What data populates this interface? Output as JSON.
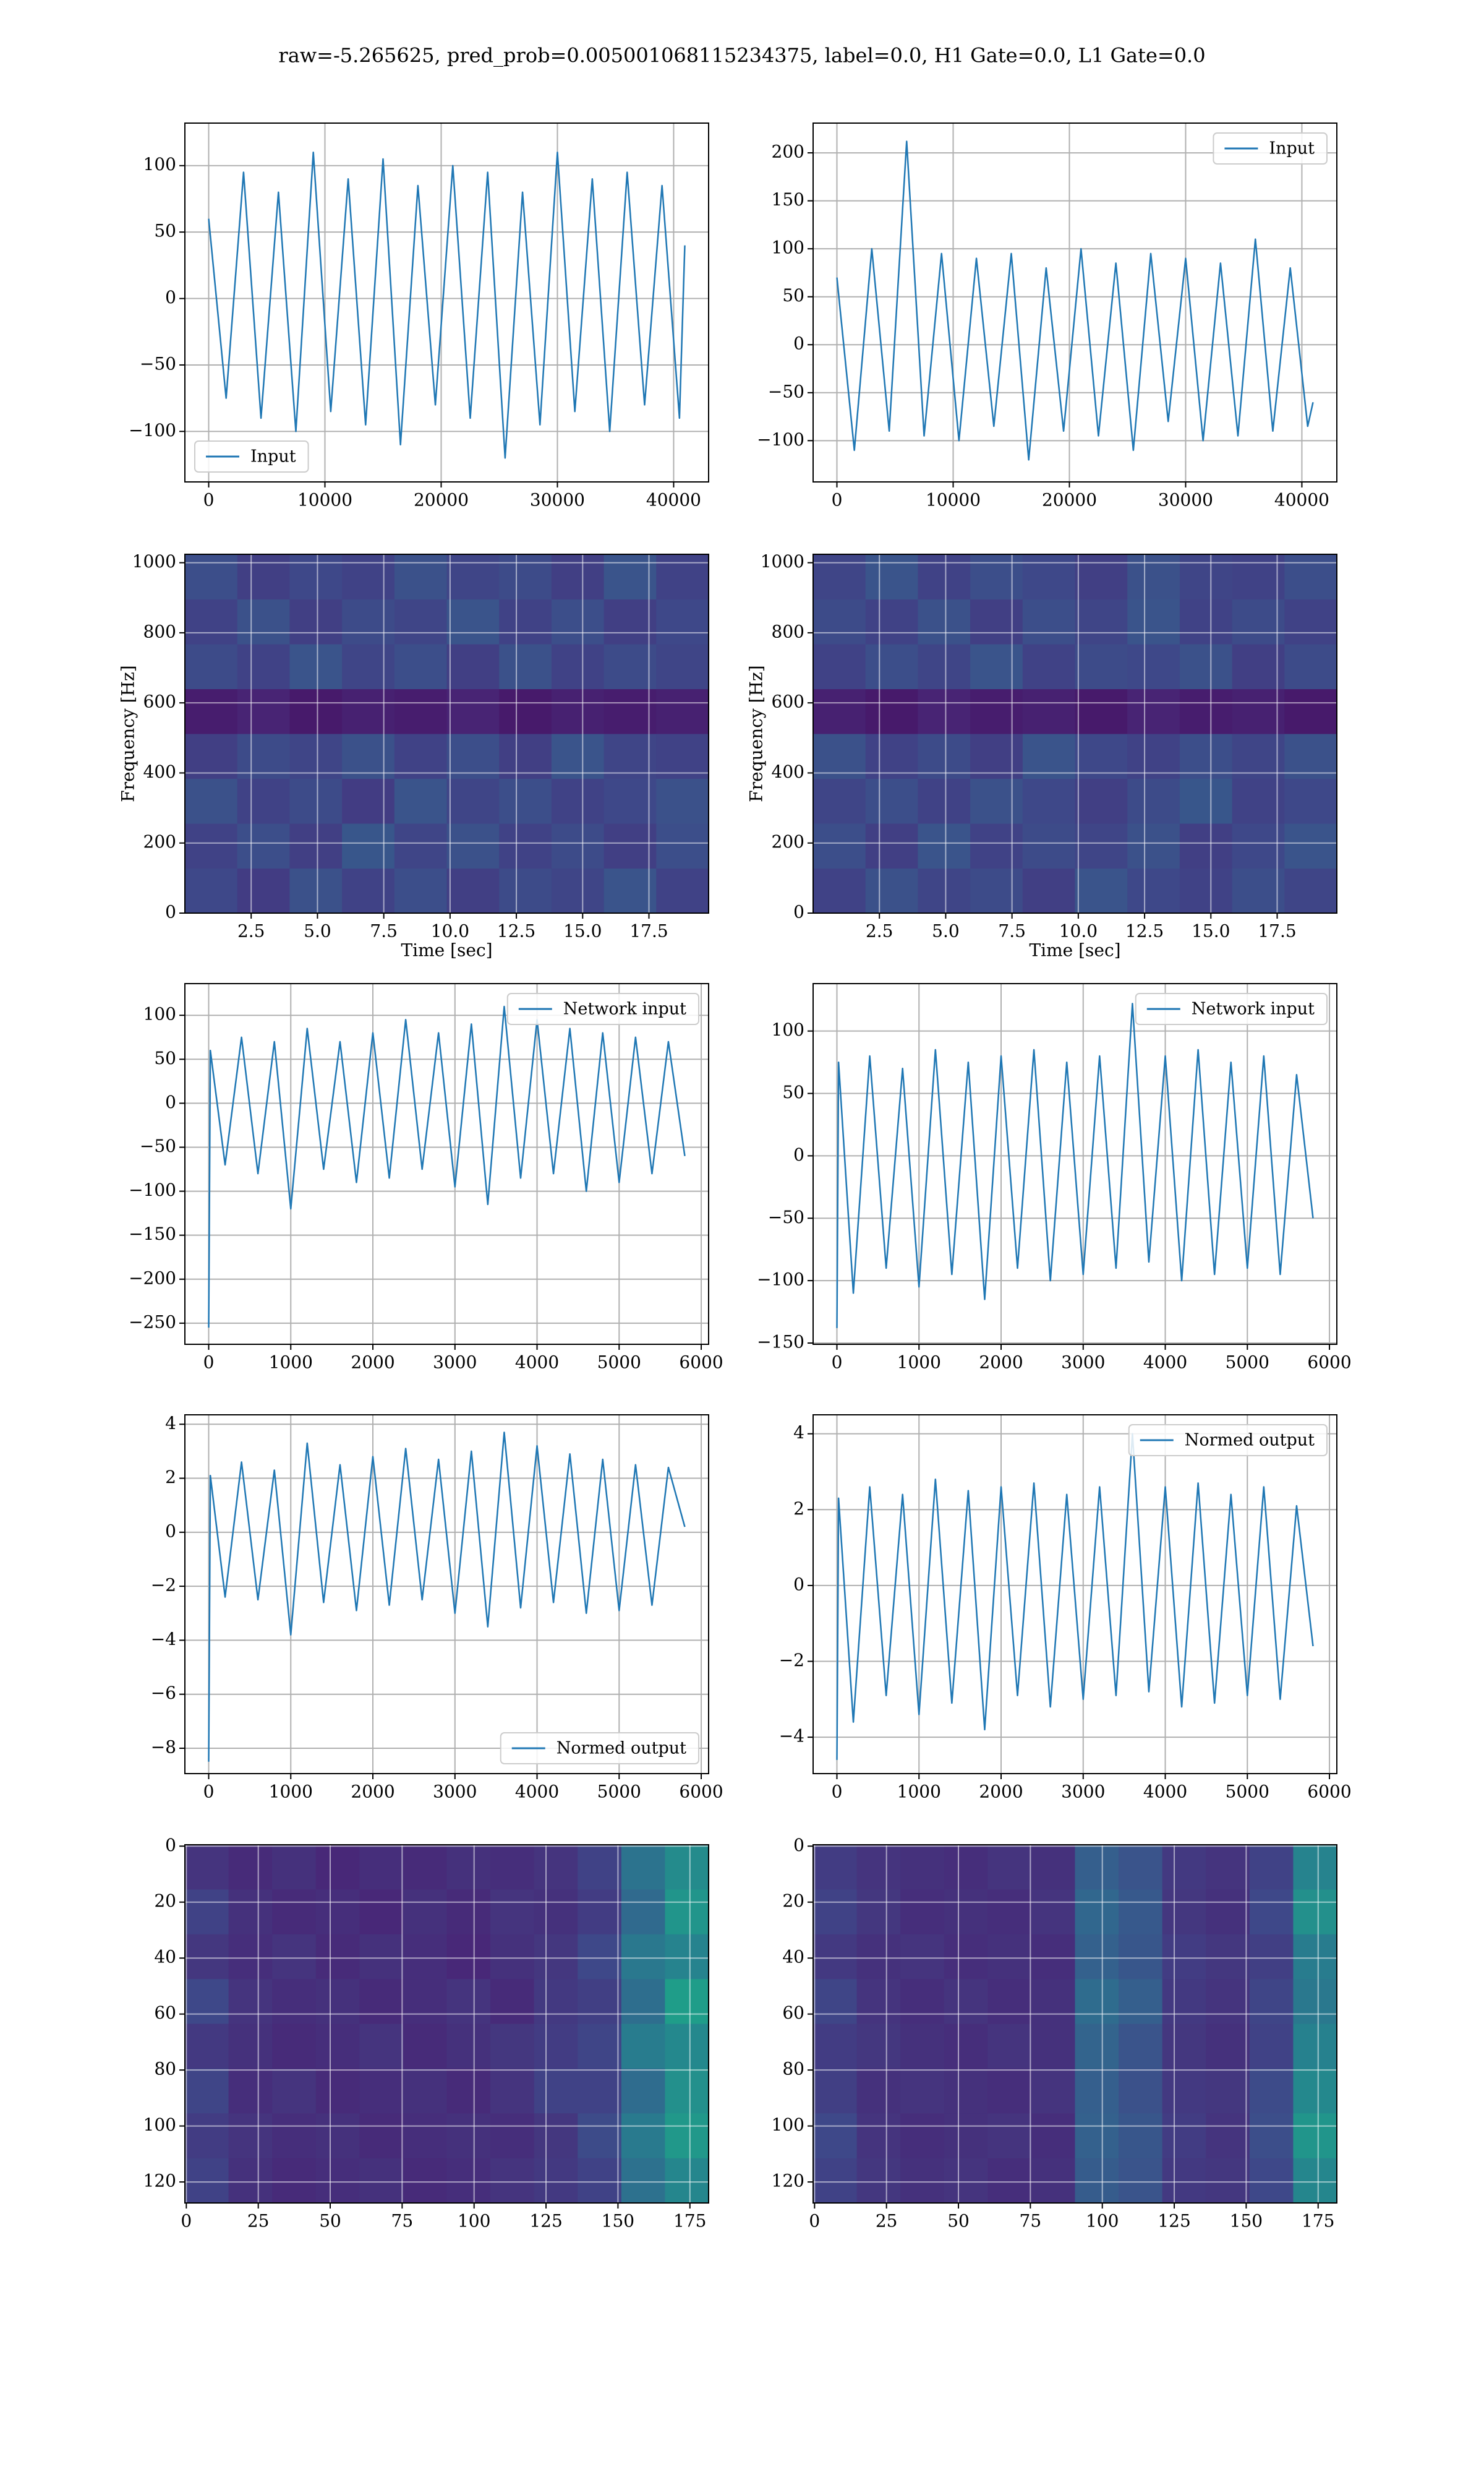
{
  "title": "raw=-5.265625, pred_prob=0.005001068115234375, label=0.0, H1 Gate=0.0, L1 Gate=0.0",
  "chart_data": [
    {
      "type": "line",
      "grid": true,
      "legend": "lower left",
      "xlim": [
        -2048,
        43008
      ],
      "ylim": [
        -138,
        132
      ],
      "xticks": [
        0,
        10000,
        20000,
        30000,
        40000
      ],
      "yticks": [
        {
          "value": -100,
          "label": "−100"
        },
        {
          "value": -50,
          "label": "−50"
        },
        0,
        50,
        100
      ],
      "x": [
        0,
        1500,
        3000,
        4500,
        6000,
        7500,
        9000,
        10500,
        12000,
        13500,
        15000,
        16500,
        18000,
        19500,
        21000,
        22500,
        24000,
        25500,
        27000,
        28500,
        30000,
        31500,
        33000,
        34500,
        36000,
        37500,
        39000,
        40500,
        40960
      ],
      "series": [
        {
          "name": "Input",
          "color": "#1f77b4",
          "values": [
            60,
            -75,
            95,
            -90,
            80,
            -100,
            110,
            -85,
            90,
            -95,
            105,
            -110,
            85,
            -80,
            100,
            -90,
            95,
            -120,
            80,
            -95,
            110,
            -85,
            90,
            -100,
            95,
            -80,
            85,
            -90,
            40
          ]
        }
      ]
    },
    {
      "type": "line",
      "grid": true,
      "legend": "upper right",
      "xlim": [
        -2048,
        43008
      ],
      "ylim": [
        -143,
        231
      ],
      "xticks": [
        0,
        10000,
        20000,
        30000,
        40000
      ],
      "yticks": [
        {
          "value": -100,
          "label": "−100"
        },
        {
          "value": -50,
          "label": "−50"
        },
        0,
        50,
        100,
        150,
        200
      ],
      "x": [
        0,
        1500,
        3000,
        4500,
        6000,
        7500,
        9000,
        10500,
        12000,
        13500,
        15000,
        16500,
        18000,
        19500,
        21000,
        22500,
        24000,
        25500,
        27000,
        28500,
        30000,
        31500,
        33000,
        34500,
        36000,
        37500,
        39000,
        40500,
        40960
      ],
      "series": [
        {
          "name": "Input",
          "color": "#1f77b4",
          "values": [
            70,
            -110,
            100,
            -90,
            212,
            -95,
            95,
            -100,
            90,
            -85,
            95,
            -120,
            80,
            -90,
            100,
            -95,
            85,
            -110,
            95,
            -80,
            90,
            -100,
            85,
            -95,
            110,
            -90,
            80,
            -85,
            -60
          ]
        }
      ]
    },
    {
      "type": "heatmap",
      "grid": true,
      "origin": "lower",
      "xlabel": "Time [sec]",
      "ylabel": "Frequency [Hz]",
      "xlim": [
        0,
        19.75
      ],
      "ylim": [
        0,
        1024
      ],
      "xticks": [
        2.5,
        {
          "value": 5,
          "label": "5.0"
        },
        7.5,
        {
          "value": 10,
          "label": "10.0"
        },
        12.5,
        {
          "value": 15,
          "label": "15.0"
        },
        17.5
      ],
      "yticks": [
        0,
        200,
        400,
        600,
        800,
        1000
      ],
      "z": [
        [
          0.22,
          0.18,
          0.25,
          0.2,
          0.24,
          0.19,
          0.23,
          0.21,
          0.26,
          0.2
        ],
        [
          0.2,
          0.24,
          0.19,
          0.27,
          0.21,
          0.25,
          0.2,
          0.23,
          0.19,
          0.24
        ],
        [
          0.25,
          0.2,
          0.23,
          0.18,
          0.26,
          0.21,
          0.24,
          0.2,
          0.22,
          0.25
        ],
        [
          0.19,
          0.23,
          0.21,
          0.25,
          0.2,
          0.24,
          0.19,
          0.26,
          0.21,
          0.2
        ],
        [
          0.08,
          0.1,
          0.07,
          0.09,
          0.08,
          0.1,
          0.07,
          0.09,
          0.08,
          0.09
        ],
        [
          0.23,
          0.2,
          0.26,
          0.21,
          0.24,
          0.19,
          0.25,
          0.2,
          0.23,
          0.21
        ],
        [
          0.2,
          0.25,
          0.19,
          0.23,
          0.21,
          0.26,
          0.2,
          0.24,
          0.19,
          0.22
        ],
        [
          0.24,
          0.19,
          0.22,
          0.2,
          0.25,
          0.21,
          0.23,
          0.19,
          0.26,
          0.2
        ]
      ]
    },
    {
      "type": "heatmap",
      "grid": true,
      "origin": "lower",
      "xlabel": "Time [sec]",
      "ylabel": "Frequency [Hz]",
      "xlim": [
        0,
        19.75
      ],
      "ylim": [
        0,
        1024
      ],
      "xticks": [
        2.5,
        {
          "value": 5,
          "label": "5.0"
        },
        7.5,
        {
          "value": 10,
          "label": "10.0"
        },
        12.5,
        {
          "value": 15,
          "label": "15.0"
        },
        17.5
      ],
      "yticks": [
        0,
        200,
        400,
        600,
        800,
        1000
      ],
      "z": [
        [
          0.2,
          0.25,
          0.21,
          0.23,
          0.19,
          0.26,
          0.22,
          0.2,
          0.24,
          0.21
        ],
        [
          0.24,
          0.19,
          0.26,
          0.2,
          0.23,
          0.21,
          0.25,
          0.19,
          0.22,
          0.26
        ],
        [
          0.21,
          0.24,
          0.2,
          0.25,
          0.22,
          0.19,
          0.23,
          0.27,
          0.2,
          0.22
        ],
        [
          0.25,
          0.2,
          0.23,
          0.19,
          0.26,
          0.22,
          0.2,
          0.24,
          0.21,
          0.25
        ],
        [
          0.09,
          0.07,
          0.1,
          0.08,
          0.09,
          0.07,
          0.1,
          0.08,
          0.09,
          0.07
        ],
        [
          0.2,
          0.24,
          0.21,
          0.26,
          0.2,
          0.23,
          0.22,
          0.25,
          0.19,
          0.23
        ],
        [
          0.23,
          0.2,
          0.25,
          0.19,
          0.24,
          0.21,
          0.26,
          0.2,
          0.23,
          0.2
        ],
        [
          0.21,
          0.26,
          0.2,
          0.24,
          0.22,
          0.19,
          0.25,
          0.21,
          0.2,
          0.24
        ]
      ]
    },
    {
      "type": "line",
      "grid": true,
      "legend": "upper right",
      "xlim": [
        -290,
        6090
      ],
      "ylim": [
        -274,
        136
      ],
      "xticks": [
        0,
        1000,
        2000,
        3000,
        4000,
        5000,
        6000
      ],
      "yticks": [
        {
          "value": -250,
          "label": "−250"
        },
        {
          "value": -200,
          "label": "−200"
        },
        {
          "value": -150,
          "label": "−150"
        },
        {
          "value": -100,
          "label": "−100"
        },
        {
          "value": -50,
          "label": "−50"
        },
        0,
        50,
        100
      ],
      "x": [
        0,
        20,
        200,
        400,
        600,
        800,
        1000,
        1200,
        1400,
        1600,
        1800,
        2000,
        2200,
        2400,
        2600,
        2800,
        3000,
        3200,
        3400,
        3600,
        3800,
        4000,
        4200,
        4400,
        4600,
        4800,
        5000,
        5200,
        5400,
        5600,
        5800
      ],
      "series": [
        {
          "name": "Network input",
          "color": "#1f77b4",
          "values": [
            -255,
            60,
            -70,
            75,
            -80,
            70,
            -120,
            85,
            -75,
            70,
            -90,
            80,
            -85,
            95,
            -75,
            80,
            -95,
            90,
            -115,
            110,
            -85,
            95,
            -80,
            85,
            -100,
            80,
            -90,
            75,
            -80,
            70,
            -60
          ]
        }
      ]
    },
    {
      "type": "line",
      "grid": true,
      "legend": "upper right",
      "xlim": [
        -290,
        6090
      ],
      "ylim": [
        -151,
        138
      ],
      "xticks": [
        0,
        1000,
        2000,
        3000,
        4000,
        5000,
        6000
      ],
      "yticks": [
        {
          "value": -150,
          "label": "−150"
        },
        {
          "value": -100,
          "label": "−100"
        },
        {
          "value": -50,
          "label": "−50"
        },
        0,
        50,
        100
      ],
      "x": [
        0,
        20,
        200,
        400,
        600,
        800,
        1000,
        1200,
        1400,
        1600,
        1800,
        2000,
        2200,
        2400,
        2600,
        2800,
        3000,
        3200,
        3400,
        3600,
        3800,
        4000,
        4200,
        4400,
        4600,
        4800,
        5000,
        5200,
        5400,
        5600,
        5800
      ],
      "series": [
        {
          "name": "Network input",
          "color": "#1f77b4",
          "values": [
            -138,
            75,
            -110,
            80,
            -90,
            70,
            -105,
            85,
            -95,
            75,
            -115,
            80,
            -90,
            85,
            -100,
            75,
            -95,
            80,
            -90,
            122,
            -85,
            80,
            -100,
            85,
            -95,
            75,
            -90,
            80,
            -95,
            65,
            -50
          ]
        }
      ]
    },
    {
      "type": "line",
      "grid": true,
      "legend": "lower right",
      "xlim": [
        -290,
        6090
      ],
      "ylim": [
        -8.94,
        4.35
      ],
      "xticks": [
        0,
        1000,
        2000,
        3000,
        4000,
        5000,
        6000
      ],
      "yticks": [
        {
          "value": -8,
          "label": "−8"
        },
        {
          "value": -6,
          "label": "−6"
        },
        {
          "value": -4,
          "label": "−4"
        },
        {
          "value": -2,
          "label": "−2"
        },
        0,
        2,
        4
      ],
      "x": [
        0,
        20,
        200,
        400,
        600,
        800,
        1000,
        1200,
        1400,
        1600,
        1800,
        2000,
        2200,
        2400,
        2600,
        2800,
        3000,
        3200,
        3400,
        3600,
        3800,
        4000,
        4200,
        4400,
        4600,
        4800,
        5000,
        5200,
        5400,
        5600,
        5800
      ],
      "series": [
        {
          "name": "Normed output",
          "color": "#1f77b4",
          "values": [
            -8.5,
            2.1,
            -2.4,
            2.6,
            -2.5,
            2.3,
            -3.8,
            3.3,
            -2.6,
            2.5,
            -2.9,
            2.8,
            -2.7,
            3.1,
            -2.5,
            2.7,
            -3.0,
            3.0,
            -3.5,
            3.7,
            -2.8,
            3.2,
            -2.6,
            2.9,
            -3.0,
            2.7,
            -2.9,
            2.5,
            -2.7,
            2.4,
            0.2
          ]
        }
      ]
    },
    {
      "type": "line",
      "grid": true,
      "legend": "upper right",
      "xlim": [
        -290,
        6090
      ],
      "ylim": [
        -4.96,
        4.5
      ],
      "xticks": [
        0,
        1000,
        2000,
        3000,
        4000,
        5000,
        6000
      ],
      "yticks": [
        {
          "value": -4,
          "label": "−4"
        },
        {
          "value": -2,
          "label": "−2"
        },
        0,
        2,
        4
      ],
      "x": [
        0,
        20,
        200,
        400,
        600,
        800,
        1000,
        1200,
        1400,
        1600,
        1800,
        2000,
        2200,
        2400,
        2600,
        2800,
        3000,
        3200,
        3400,
        3600,
        3800,
        4000,
        4200,
        4400,
        4600,
        4800,
        5000,
        5200,
        5400,
        5600,
        5800
      ],
      "series": [
        {
          "name": "Normed output",
          "color": "#1f77b4",
          "values": [
            -4.6,
            2.3,
            -3.6,
            2.6,
            -2.9,
            2.4,
            -3.4,
            2.8,
            -3.1,
            2.5,
            -3.8,
            2.6,
            -2.9,
            2.7,
            -3.2,
            2.4,
            -3.0,
            2.6,
            -2.9,
            4.0,
            -2.8,
            2.6,
            -3.2,
            2.7,
            -3.1,
            2.4,
            -2.9,
            2.6,
            -3.0,
            2.1,
            -1.6
          ]
        }
      ]
    },
    {
      "type": "heatmap",
      "grid": true,
      "origin": "upper",
      "xlim": [
        -0.5,
        181.5
      ],
      "ylim": [
        127.5,
        -0.5
      ],
      "xticks": [
        0,
        25,
        50,
        75,
        100,
        125,
        150,
        175
      ],
      "yticks": [
        0,
        20,
        40,
        60,
        80,
        100,
        120
      ],
      "z": [
        [
          0.15,
          0.12,
          0.14,
          0.11,
          0.13,
          0.12,
          0.14,
          0.13,
          0.15,
          0.2,
          0.38,
          0.48
        ],
        [
          0.2,
          0.14,
          0.12,
          0.13,
          0.11,
          0.14,
          0.12,
          0.15,
          0.14,
          0.18,
          0.34,
          0.52
        ],
        [
          0.16,
          0.13,
          0.15,
          0.12,
          0.14,
          0.13,
          0.11,
          0.14,
          0.16,
          0.22,
          0.4,
          0.45
        ],
        [
          0.22,
          0.15,
          0.13,
          0.14,
          0.12,
          0.13,
          0.15,
          0.12,
          0.17,
          0.19,
          0.36,
          0.55
        ],
        [
          0.17,
          0.14,
          0.12,
          0.13,
          0.15,
          0.12,
          0.14,
          0.16,
          0.18,
          0.21,
          0.42,
          0.47
        ],
        [
          0.21,
          0.13,
          0.15,
          0.12,
          0.13,
          0.14,
          0.12,
          0.15,
          0.2,
          0.2,
          0.35,
          0.5
        ],
        [
          0.18,
          0.15,
          0.13,
          0.14,
          0.12,
          0.13,
          0.14,
          0.13,
          0.16,
          0.23,
          0.41,
          0.53
        ],
        [
          0.2,
          0.14,
          0.12,
          0.13,
          0.14,
          0.12,
          0.13,
          0.15,
          0.17,
          0.2,
          0.37,
          0.46
        ]
      ]
    },
    {
      "type": "heatmap",
      "grid": true,
      "origin": "upper",
      "xlim": [
        -0.5,
        181.5
      ],
      "ylim": [
        127.5,
        -0.5
      ],
      "xticks": [
        0,
        25,
        50,
        75,
        100,
        125,
        150,
        175
      ],
      "yticks": [
        0,
        20,
        40,
        60,
        80,
        100,
        120
      ],
      "z": [
        [
          0.18,
          0.15,
          0.14,
          0.13,
          0.15,
          0.14,
          0.3,
          0.26,
          0.17,
          0.15,
          0.2,
          0.45
        ],
        [
          0.2,
          0.16,
          0.13,
          0.14,
          0.13,
          0.15,
          0.33,
          0.28,
          0.16,
          0.14,
          0.22,
          0.5
        ],
        [
          0.17,
          0.14,
          0.15,
          0.13,
          0.14,
          0.13,
          0.31,
          0.27,
          0.18,
          0.16,
          0.19,
          0.42
        ],
        [
          0.21,
          0.15,
          0.13,
          0.15,
          0.13,
          0.14,
          0.35,
          0.3,
          0.17,
          0.15,
          0.21,
          0.4
        ],
        [
          0.18,
          0.16,
          0.14,
          0.13,
          0.15,
          0.14,
          0.32,
          0.26,
          0.16,
          0.14,
          0.2,
          0.44
        ],
        [
          0.19,
          0.14,
          0.15,
          0.14,
          0.13,
          0.15,
          0.3,
          0.25,
          0.17,
          0.16,
          0.23,
          0.47
        ],
        [
          0.22,
          0.15,
          0.13,
          0.14,
          0.15,
          0.13,
          0.31,
          0.27,
          0.18,
          0.15,
          0.24,
          0.52
        ],
        [
          0.2,
          0.16,
          0.14,
          0.15,
          0.13,
          0.14,
          0.29,
          0.26,
          0.17,
          0.16,
          0.22,
          0.46
        ]
      ]
    }
  ]
}
